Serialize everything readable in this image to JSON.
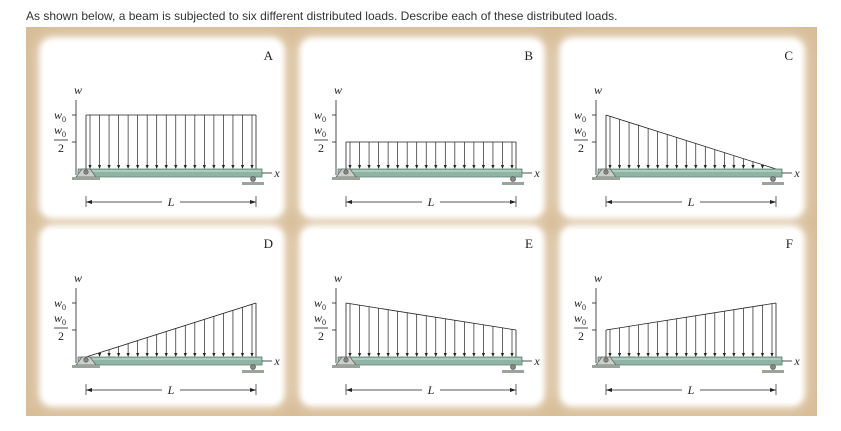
{
  "question": "As shown below, a beam is subjected to six different distributed loads. Describe each of these distributed loads.",
  "labels": {
    "w_axis": "w",
    "x_axis": "x",
    "w0": "w",
    "w0_sub": "0",
    "w0_half_num": "w",
    "w0_half_sub": "0",
    "w0_half_den": "2",
    "length": "L"
  },
  "panels": [
    {
      "id": "A",
      "load_start": 1.0,
      "load_end": 1.0
    },
    {
      "id": "B",
      "load_start": 0.5,
      "load_end": 0.5
    },
    {
      "id": "C",
      "load_start": 1.0,
      "load_end": 0.0
    },
    {
      "id": "D",
      "load_start": 0.0,
      "load_end": 1.0
    },
    {
      "id": "E",
      "load_start": 1.0,
      "load_end": 0.5
    },
    {
      "id": "F",
      "load_start": 0.5,
      "load_end": 1.0
    }
  ],
  "colors": {
    "frame": "#d8bd98",
    "beam": "#8fb3a4",
    "beam_dark": "#5f8576",
    "ink": "#222222"
  }
}
